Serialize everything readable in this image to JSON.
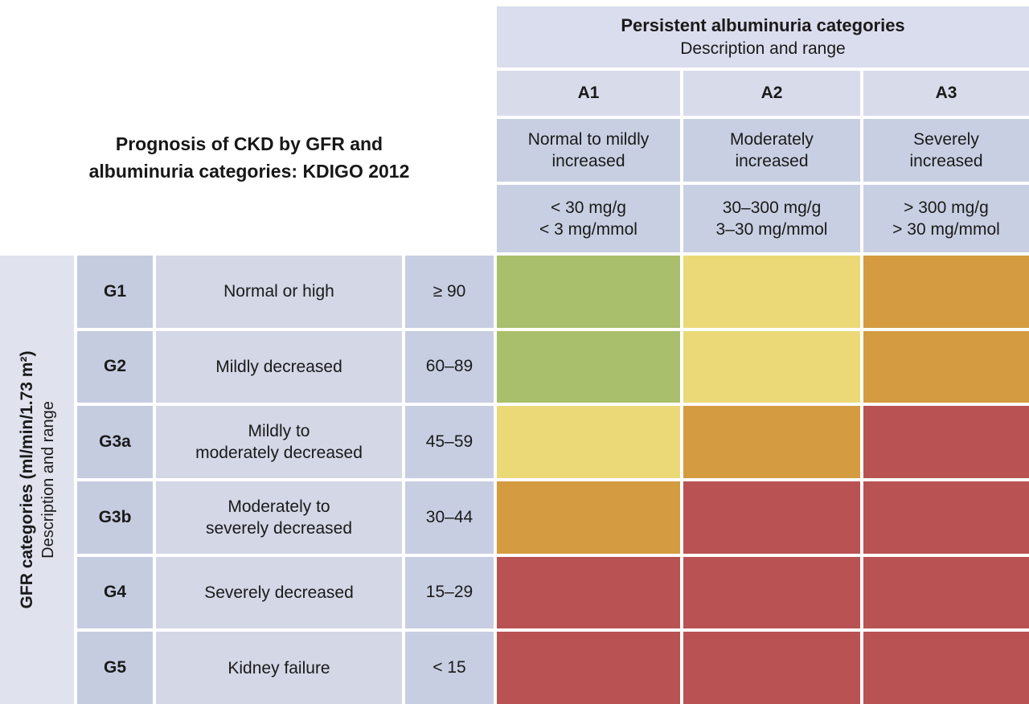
{
  "figure": {
    "title": "Prognosis of CKD by GFR and\nalbuminuria categories: KDIGO 2012"
  },
  "albuminuria": {
    "title": "Persistent albuminuria categories",
    "subtitle": "Description and range",
    "columns": [
      {
        "code": "A1",
        "description": "Normal to mildly\nincreased",
        "range": "< 30 mg/g\n< 3 mg/mmol"
      },
      {
        "code": "A2",
        "description": "Moderately\nincreased",
        "range": "30–300 mg/g\n3–30 mg/mmol"
      },
      {
        "code": "A3",
        "description": "Severely\nincreased",
        "range": "> 300 mg/g\n> 30 mg/mmol"
      }
    ]
  },
  "gfr": {
    "axis_title": "GFR categories (ml/min/1.73 m²)",
    "axis_subtitle": "Description and range",
    "rows": [
      {
        "code": "G1",
        "description": "Normal or high",
        "range": "≥ 90"
      },
      {
        "code": "G2",
        "description": "Mildly decreased",
        "range": "60–89"
      },
      {
        "code": "G3a",
        "description": "Mildly to\nmoderately decreased",
        "range": "45–59"
      },
      {
        "code": "G3b",
        "description": "Moderately to\nseverely decreased",
        "range": "30–44"
      },
      {
        "code": "G4",
        "description": "Severely decreased",
        "range": "15–29"
      },
      {
        "code": "G5",
        "description": "Kidney failure",
        "range": "< 15"
      }
    ]
  },
  "risk_colors": {
    "green": "#a9bf6b",
    "yellow": "#ebd978",
    "orange": "#d49b40",
    "red": "#b95252"
  },
  "risk_matrix": [
    [
      "green",
      "yellow",
      "orange"
    ],
    [
      "green",
      "yellow",
      "orange"
    ],
    [
      "yellow",
      "orange",
      "red"
    ],
    [
      "orange",
      "red",
      "red"
    ],
    [
      "red",
      "red",
      "red"
    ],
    [
      "red",
      "red",
      "red"
    ]
  ],
  "chart_data": {
    "type": "heatmap",
    "title": "Prognosis of CKD by GFR and albuminuria categories: KDIGO 2012",
    "x_axis_label": "Persistent albuminuria categories — Description and range",
    "y_axis_label": "GFR categories (ml/min/1.73 m²) — Description and range",
    "x_categories": [
      "A1",
      "A2",
      "A3"
    ],
    "x_descriptions": [
      "Normal to mildly increased",
      "Moderately increased",
      "Severely increased"
    ],
    "x_ranges": [
      "< 30 mg/g / < 3 mg/mmol",
      "30–300 mg/g / 3–30 mg/mmol",
      "> 300 mg/g / > 30 mg/mmol"
    ],
    "y_categories": [
      "G1",
      "G2",
      "G3a",
      "G3b",
      "G4",
      "G5"
    ],
    "y_descriptions": [
      "Normal or high",
      "Mildly decreased",
      "Mildly to moderately decreased",
      "Moderately to severely decreased",
      "Severely decreased",
      "Kidney failure"
    ],
    "y_ranges": [
      "≥ 90",
      "60–89",
      "45–59",
      "30–44",
      "15–29",
      "< 15"
    ],
    "values": [
      [
        "green",
        "yellow",
        "orange"
      ],
      [
        "green",
        "yellow",
        "orange"
      ],
      [
        "yellow",
        "orange",
        "red"
      ],
      [
        "orange",
        "red",
        "red"
      ],
      [
        "red",
        "red",
        "red"
      ],
      [
        "red",
        "red",
        "red"
      ]
    ],
    "color_key": {
      "green": "#a9bf6b",
      "yellow": "#ebd978",
      "orange": "#d49b40",
      "red": "#b95252"
    },
    "legend_position": "none",
    "grid": false
  }
}
